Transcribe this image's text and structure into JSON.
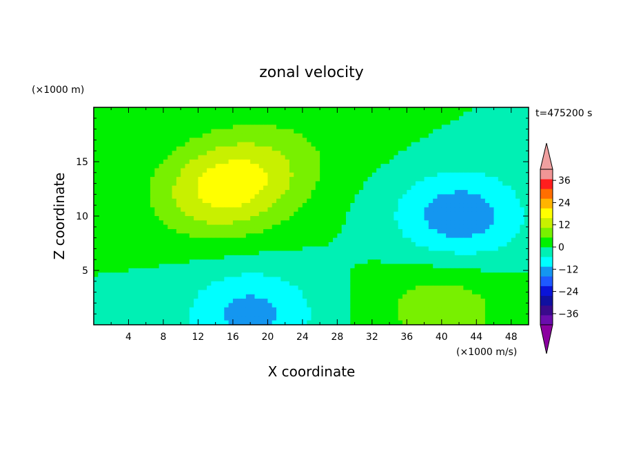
{
  "chart_data": {
    "type": "heatmap",
    "title": "zonal velocity",
    "xlabel": "X coordinate",
    "ylabel": "Z coordinate",
    "x_unit_note": "(×1000 m/s)",
    "y_unit_note": "(×1000 m)",
    "time_label": "t=475200 s",
    "xlim": [
      0,
      50
    ],
    "ylim": [
      0,
      20
    ],
    "x_ticks": [
      "4",
      "8",
      "12",
      "16",
      "20",
      "24",
      "28",
      "32",
      "36",
      "40",
      "44",
      "48"
    ],
    "y_ticks": [
      "5",
      "10",
      "15"
    ],
    "colorbar": {
      "tick_labels": [
        "36",
        "24",
        "12",
        "0",
        "−12",
        "−24",
        "−36"
      ],
      "levels": [
        -42,
        -36,
        -30,
        -24,
        -18,
        -12,
        -6,
        0,
        6,
        12,
        18,
        24,
        30,
        36,
        42
      ],
      "colors": [
        "#6a0dad",
        "#3a0a8c",
        "#1010a0",
        "#0a14d8",
        "#1e5aff",
        "#1496f0",
        "#00ffff",
        "#00f0b4",
        "#00f000",
        "#78f000",
        "#c8f000",
        "#ffff00",
        "#ffb400",
        "#ff6e00",
        "#ff1e1e",
        "#f09696"
      ],
      "under_color": "#8b00a0",
      "over_color": "#f0a0a0"
    },
    "field_features": [
      {
        "description": "positive core",
        "x": 14,
        "z": 12,
        "value": 16
      },
      {
        "description": "positive lobe",
        "x": 19,
        "z": 14.5,
        "value": 11
      },
      {
        "description": "negative core",
        "x": 42,
        "z": 10,
        "value": -16
      },
      {
        "description": "negative near-surface",
        "x": 18,
        "z": 1,
        "value": -14
      },
      {
        "description": "positive near-surface",
        "x": 40,
        "z": 1.5,
        "value": 10
      },
      {
        "description": "weak positive upper right",
        "x": 30,
        "z": 18,
        "value": 2
      }
    ]
  }
}
